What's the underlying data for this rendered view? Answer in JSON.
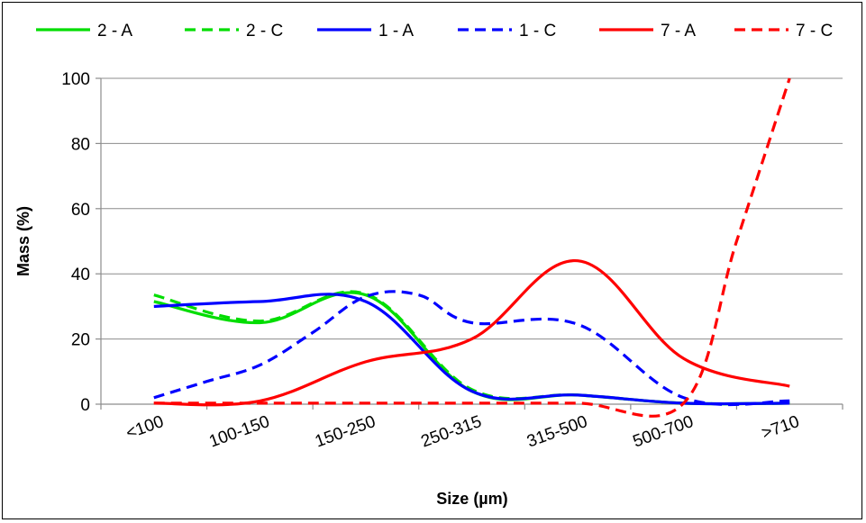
{
  "chart_data": {
    "type": "line",
    "title": "",
    "xlabel": "Size (µm)",
    "ylabel": "Mass (%)",
    "categories": [
      "<100",
      "100-150",
      "150-250",
      "250-315",
      "315-500",
      "500-700",
      ">710"
    ],
    "ylim": [
      0,
      100
    ],
    "yticks": [
      0,
      20,
      40,
      60,
      80,
      100
    ],
    "grid": true,
    "legend_position": "top",
    "series": [
      {
        "name": "2 - A",
        "color": "#00dd00",
        "dash": "solid",
        "x": [
          0,
          1,
          2,
          3,
          4,
          5,
          6
        ],
        "values": [
          31.5,
          25,
          33.5,
          4,
          2.8,
          0.3,
          0.3
        ]
      },
      {
        "name": "2 - C",
        "color": "#00dd00",
        "dash": "dashed",
        "x": [
          0,
          1,
          2,
          3,
          4,
          5,
          6
        ],
        "values": [
          33.5,
          25.5,
          33.8,
          4.5,
          2.8,
          0.3,
          0.3
        ]
      },
      {
        "name": "1 - A",
        "color": "#0000ff",
        "dash": "solid",
        "x": [
          0,
          1,
          2,
          3,
          4,
          5,
          6
        ],
        "values": [
          30,
          31.5,
          31.5,
          4,
          2.8,
          0.3,
          0.3
        ]
      },
      {
        "name": "1 - C",
        "color": "#0000ff",
        "dash": "dashed",
        "x": [
          0,
          0.5,
          1,
          1.5,
          2,
          2.5,
          3,
          4,
          5,
          6
        ],
        "values": [
          2,
          7,
          12,
          22,
          33,
          33.5,
          25,
          24.5,
          2,
          1
        ]
      },
      {
        "name": "7 - A",
        "color": "#ff0000",
        "dash": "solid",
        "x": [
          0,
          1,
          2,
          3,
          4,
          5,
          6
        ],
        "values": [
          0.3,
          1,
          13,
          20,
          44,
          14,
          5.5
        ]
      },
      {
        "name": "7 - C",
        "color": "#ff0000",
        "dash": "dashed",
        "x": [
          0,
          1,
          2,
          3,
          4,
          5,
          5.5,
          6
        ],
        "values": [
          0.3,
          0.3,
          0.3,
          0.3,
          0.3,
          0.3,
          50,
          100
        ]
      }
    ]
  }
}
